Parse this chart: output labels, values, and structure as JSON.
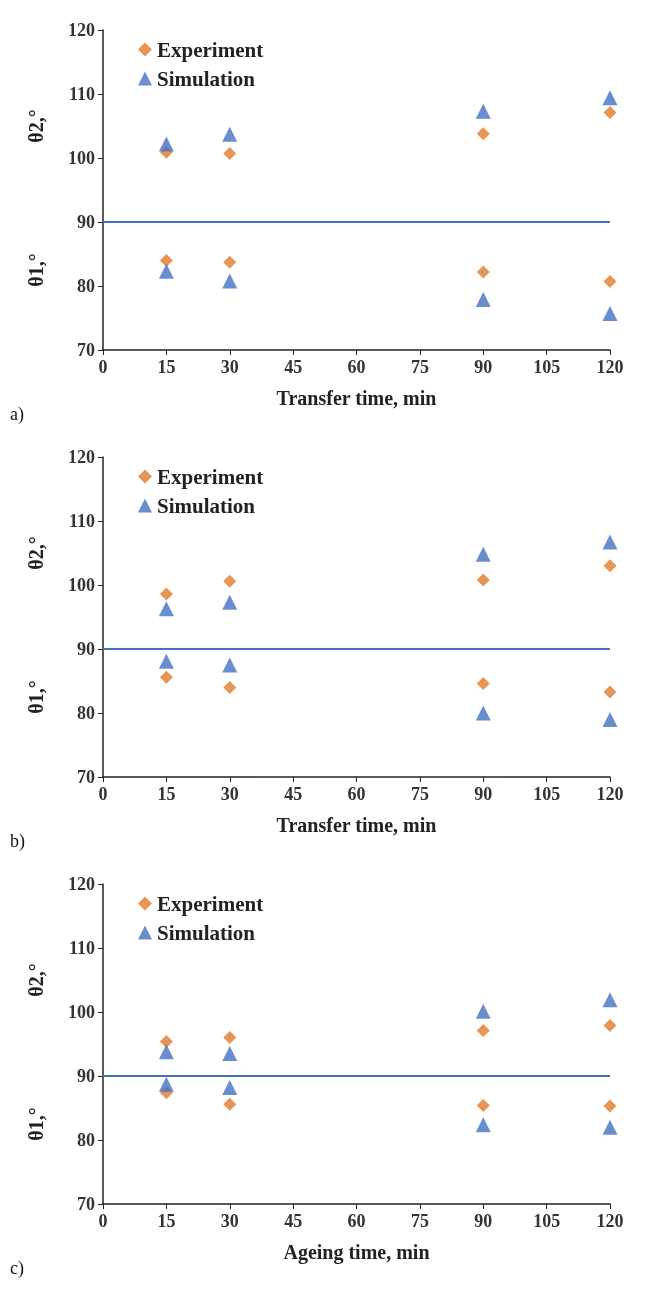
{
  "chart_data": [
    {
      "type": "scatter",
      "xlabel": "Transfer time, min",
      "ylabel": "θ1,°",
      "annotations": [
        "θ2,°",
        "a)"
      ],
      "xlim": [
        0,
        120
      ],
      "xticks": [
        0,
        15,
        30,
        45,
        60,
        75,
        90,
        105,
        120
      ],
      "ylim": [
        70,
        120
      ],
      "yticks": [
        70,
        80,
        90,
        100,
        110,
        120
      ],
      "legend": "top left",
      "grid": false,
      "ref_lines": [
        {
          "axis": "y",
          "value": 90,
          "color": "#4472c4",
          "line_style": "solid"
        }
      ],
      "series": [
        {
          "name": "Experiment",
          "color": "#e07b2a",
          "marker": "diamond",
          "x": [
            15,
            30,
            90,
            120,
            15,
            30,
            90,
            120
          ],
          "values": [
            100.9,
            100.7,
            103.8,
            107.1,
            84.0,
            83.7,
            82.2,
            80.7
          ]
        },
        {
          "name": "Simulation",
          "color": "#4472c4",
          "marker": "triangle",
          "x": [
            15,
            30,
            90,
            120,
            15,
            30,
            90,
            120
          ],
          "values": [
            102.2,
            103.7,
            107.3,
            109.4,
            82.3,
            80.8,
            77.9,
            75.7
          ]
        }
      ]
    },
    {
      "type": "scatter",
      "xlabel": "Transfer time, min",
      "ylabel": "θ1,°",
      "annotations": [
        "θ2,°",
        "b)"
      ],
      "xlim": [
        0,
        120
      ],
      "xticks": [
        0,
        15,
        30,
        45,
        60,
        75,
        90,
        105,
        120
      ],
      "ylim": [
        70,
        120
      ],
      "yticks": [
        70,
        80,
        90,
        100,
        110,
        120
      ],
      "legend": "top left",
      "grid": false,
      "ref_lines": [
        {
          "axis": "y",
          "value": 90,
          "color": "#4472c4",
          "line_style": "solid"
        }
      ],
      "series": [
        {
          "name": "Experiment",
          "color": "#e07b2a",
          "marker": "diamond",
          "x": [
            15,
            30,
            90,
            120,
            15,
            30,
            90,
            120
          ],
          "values": [
            98.6,
            100.6,
            100.8,
            103.0,
            85.6,
            84.0,
            84.6,
            83.3
          ]
        },
        {
          "name": "Simulation",
          "color": "#4472c4",
          "marker": "triangle",
          "x": [
            15,
            30,
            90,
            120,
            15,
            30,
            90,
            120
          ],
          "values": [
            96.3,
            97.3,
            104.8,
            106.7,
            88.1,
            87.5,
            80.0,
            79.0
          ]
        }
      ]
    },
    {
      "type": "scatter",
      "xlabel": "Ageing time, min",
      "ylabel": "θ1,°",
      "annotations": [
        "θ2,°",
        "c)"
      ],
      "xlim": [
        0,
        120
      ],
      "xticks": [
        0,
        15,
        30,
        45,
        60,
        75,
        90,
        105,
        120
      ],
      "ylim": [
        70,
        120
      ],
      "yticks": [
        70,
        80,
        90,
        100,
        110,
        120
      ],
      "legend": "top left",
      "grid": false,
      "ref_lines": [
        {
          "axis": "y",
          "value": 90,
          "color": "#4472c4",
          "line_style": "solid"
        }
      ],
      "series": [
        {
          "name": "Experiment",
          "color": "#e07b2a",
          "marker": "diamond",
          "x": [
            15,
            30,
            90,
            120,
            15,
            30,
            90,
            120
          ],
          "values": [
            95.4,
            96.0,
            97.1,
            97.9,
            87.4,
            85.6,
            85.4,
            85.3
          ]
        },
        {
          "name": "Simulation",
          "color": "#4472c4",
          "marker": "triangle",
          "x": [
            15,
            30,
            90,
            120,
            15,
            30,
            90,
            120
          ],
          "values": [
            93.8,
            93.5,
            100.1,
            101.9,
            88.7,
            88.2,
            82.4,
            82.0
          ]
        }
      ]
    }
  ]
}
